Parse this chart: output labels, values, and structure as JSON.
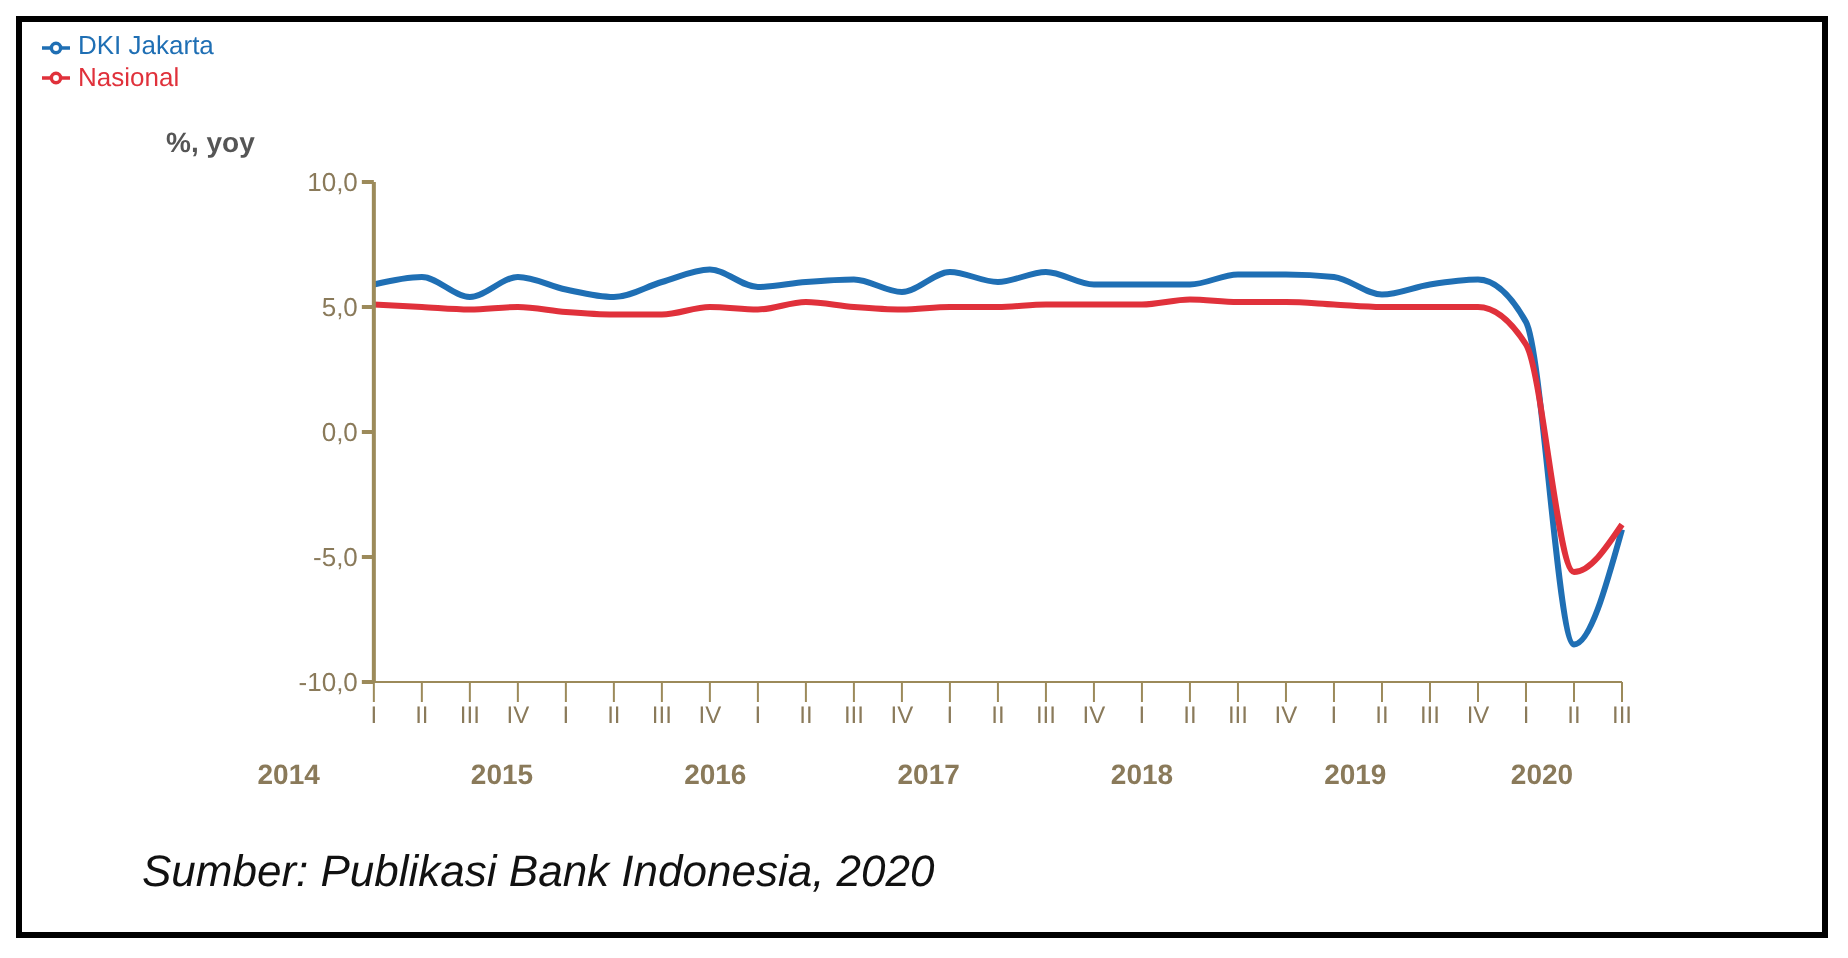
{
  "chart_data": {
    "type": "line",
    "ylabel": "%, yoy",
    "categories": [
      "I",
      "II",
      "III",
      "IV",
      "I",
      "II",
      "III",
      "IV",
      "I",
      "II",
      "III",
      "IV",
      "I",
      "II",
      "III",
      "IV",
      "I",
      "II",
      "III",
      "IV",
      "I",
      "II",
      "III",
      "IV",
      "I",
      "II",
      "III"
    ],
    "series": [
      {
        "name": "DKI Jakarta",
        "color": "#1f6fb4",
        "values": [
          5.9,
          6.2,
          5.4,
          6.2,
          5.7,
          5.4,
          6.0,
          6.5,
          5.8,
          6.0,
          6.1,
          5.6,
          6.4,
          6.0,
          6.4,
          5.9,
          5.9,
          5.9,
          6.3,
          6.3,
          6.2,
          5.5,
          5.9,
          6.1,
          4.4,
          -8.5,
          -3.9
        ]
      },
      {
        "name": "Nasional",
        "color": "#e0313b",
        "values": [
          5.1,
          5.0,
          4.9,
          5.0,
          4.8,
          4.7,
          4.7,
          5.0,
          4.9,
          5.2,
          5.0,
          4.9,
          5.0,
          5.0,
          5.1,
          5.1,
          5.1,
          5.3,
          5.2,
          5.2,
          5.1,
          5.0,
          5.0,
          5.0,
          3.5,
          -5.6,
          -3.7
        ]
      }
    ],
    "ylim": [
      -10,
      10
    ],
    "yticks": [
      {
        "value": -10,
        "label": "-10,0"
      },
      {
        "value": -5,
        "label": "-5,0"
      },
      {
        "value": 0,
        "label": "0,0"
      },
      {
        "value": 5,
        "label": "5,0"
      },
      {
        "value": 10,
        "label": "10,0"
      }
    ],
    "grid": false,
    "legend": "top left",
    "marker": "none",
    "line_style": "solid",
    "annotations": [
      "2014",
      "2015",
      "2016",
      "2017",
      "2018",
      "2019",
      "2020",
      "Sumber: Publikasi Bank Indonesia, 2020"
    ]
  }
}
